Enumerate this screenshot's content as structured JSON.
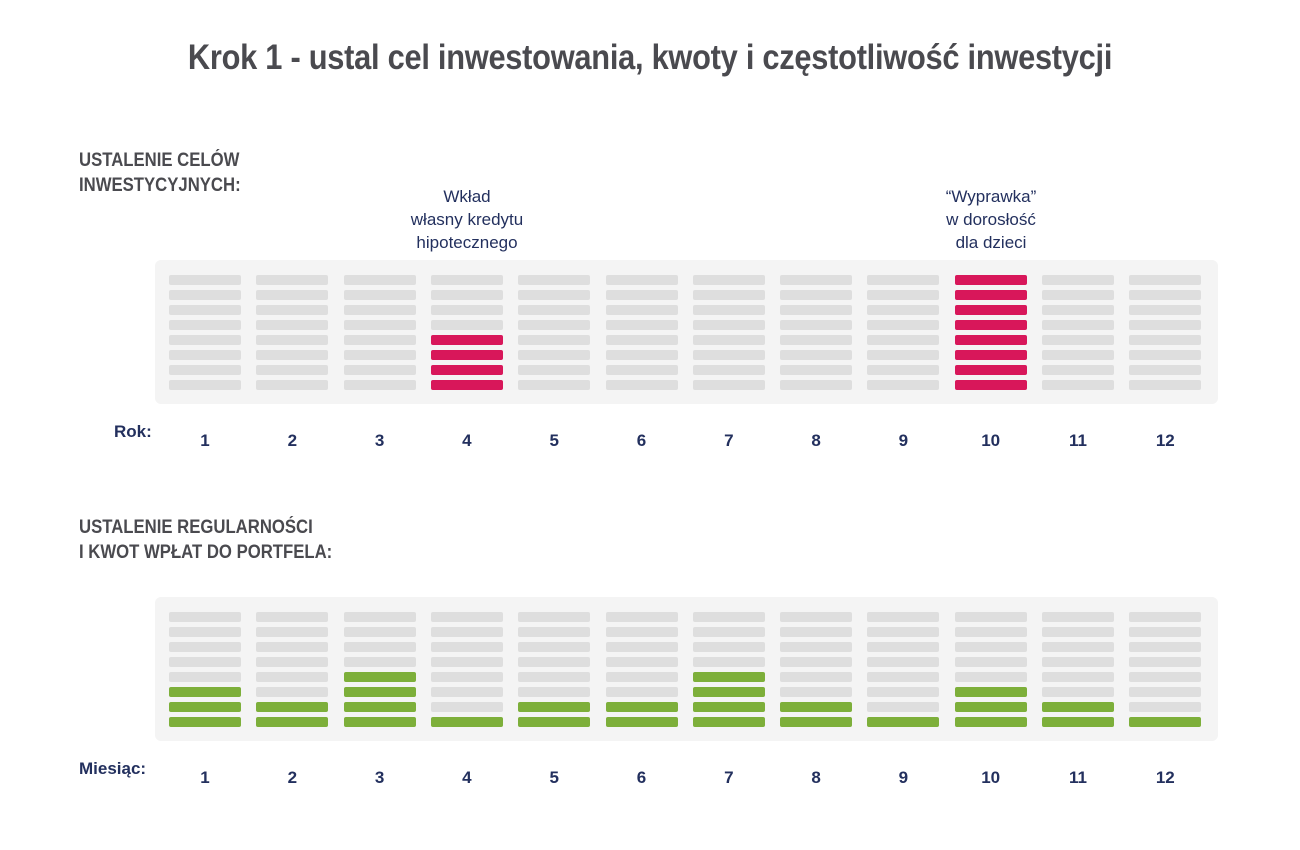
{
  "title": "Krok 1 - ustal cel inwestowania, kwoty i częstotliwość inwestycji",
  "colors": {
    "goal": "#d8175a",
    "deposit": "#7daf3a",
    "empty": "#dedede",
    "panel": "#f4f4f4"
  },
  "chart_data": [
    {
      "type": "bar",
      "title": "USTALENIE CELÓW\nINWESTYCYJNYCH:",
      "xlabel": "Rok:",
      "categories": [
        "1",
        "2",
        "3",
        "4",
        "5",
        "6",
        "7",
        "8",
        "9",
        "10",
        "11",
        "12"
      ],
      "values": [
        0,
        0,
        0,
        4,
        0,
        0,
        0,
        0,
        0,
        8,
        0,
        0
      ],
      "ylim": [
        0,
        8
      ],
      "annotations": [
        {
          "category": "4",
          "text": "Wkład\nwłasny kredytu\nhipotecznego"
        },
        {
          "category": "10",
          "text": "“Wyprawka”\nw dorosłość\ndla dzieci"
        }
      ]
    },
    {
      "type": "bar",
      "title": "USTALENIE REGULARNOŚCI\nI KWOT WPŁAT DO PORTFELA:",
      "xlabel": "Miesiąc:",
      "categories": [
        "1",
        "2",
        "3",
        "4",
        "5",
        "6",
        "7",
        "8",
        "9",
        "10",
        "11",
        "12"
      ],
      "values": [
        3,
        2,
        4,
        1,
        2,
        2,
        4,
        2,
        1,
        3,
        2,
        1
      ],
      "ylim": [
        0,
        8
      ]
    }
  ]
}
